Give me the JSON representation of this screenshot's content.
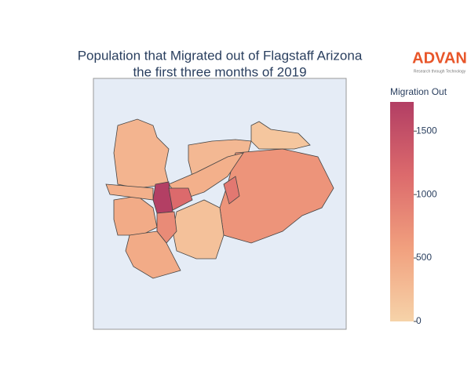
{
  "chart_data": {
    "type": "choropleth",
    "title": "Population that Migrated out of Flagstaff Arizona",
    "subtitle": "the first three months of 2019",
    "logo": {
      "name": "ADVAN",
      "tagline": "Research through Technology"
    },
    "colorbar_title": "Migration Out",
    "colorscale": [
      "#f6d3a9",
      "#f1a07e",
      "#dc6a6c",
      "#b23e64"
    ],
    "clim": [
      0,
      1730
    ],
    "cticks": [
      0,
      500,
      1000,
      1500
    ],
    "values": [
      350,
      300,
      150,
      700,
      400,
      1720,
      1150,
      450,
      400,
      200,
      800,
      450,
      1000
    ]
  }
}
